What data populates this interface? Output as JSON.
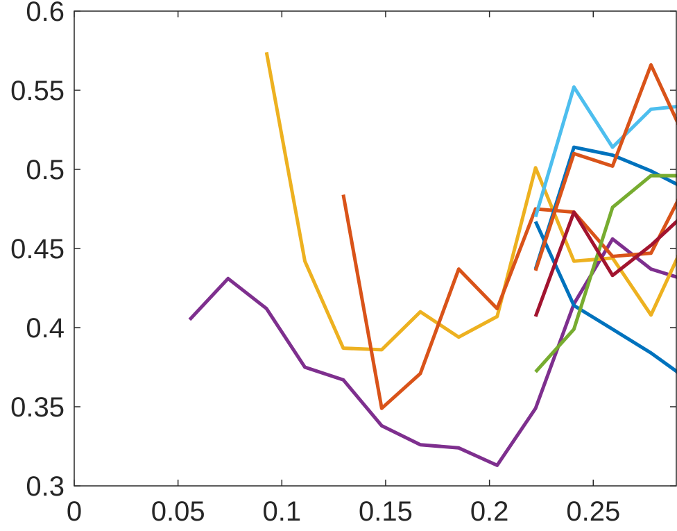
{
  "chart_data": {
    "type": "line",
    "title": "",
    "xlabel": "",
    "ylabel": "",
    "xlim": [
      0,
      0.29
    ],
    "ylim": [
      0.3,
      0.6
    ],
    "grid": false,
    "legend": "none",
    "x_ticks": [
      0,
      0.05,
      0.1,
      0.15,
      0.2,
      0.25
    ],
    "x_tick_labels": [
      "0",
      "0.05",
      "0.1",
      "0.15",
      "0.2",
      "0.25"
    ],
    "y_ticks": [
      0.3,
      0.35,
      0.4,
      0.45,
      0.5,
      0.55,
      0.6
    ],
    "y_tick_labels": [
      "0.3",
      "0.35",
      "0.4",
      "0.45",
      "0.5",
      "0.55",
      "0.6"
    ],
    "series": [
      {
        "color": "#7E2F8E",
        "x": [
          0.0556,
          0.0741,
          0.0926,
          0.1111,
          0.1296,
          0.1481,
          0.1667,
          0.1852,
          0.2037,
          0.2222,
          0.2407,
          0.2593,
          0.2778,
          0.2926
        ],
        "y": [
          0.405,
          0.431,
          0.412,
          0.375,
          0.367,
          0.338,
          0.326,
          0.324,
          0.313,
          0.349,
          0.415,
          0.456,
          0.437,
          0.431
        ]
      },
      {
        "color": "#EDB120",
        "x": [
          0.0926,
          0.1111,
          0.1296,
          0.1481,
          0.1667,
          0.1852,
          0.2037,
          0.2222,
          0.2407,
          0.2593,
          0.2778,
          0.2926
        ],
        "y": [
          0.574,
          0.442,
          0.387,
          0.386,
          0.41,
          0.394,
          0.407,
          0.501,
          0.442,
          0.444,
          0.408,
          0.45
        ]
      },
      {
        "color": "#D95319",
        "x": [
          0.1296,
          0.1481,
          0.1667,
          0.1852,
          0.2037,
          0.2222,
          0.2407,
          0.2593,
          0.2778,
          0.2926
        ],
        "y": [
          0.484,
          0.349,
          0.371,
          0.437,
          0.412,
          0.475,
          0.473,
          0.445,
          0.447,
          0.485
        ]
      },
      {
        "color": "#0072BD",
        "x": [
          0.2222,
          0.2407,
          0.2593,
          0.2778,
          0.2926
        ],
        "y": [
          0.467,
          0.414,
          0.399,
          0.384,
          0.37
        ]
      },
      {
        "color": "#4DBEEE",
        "x": [
          0.2222,
          0.2407,
          0.2593,
          0.2778,
          0.2926
        ],
        "y": [
          0.47,
          0.552,
          0.514,
          0.538,
          0.54
        ]
      },
      {
        "color": "#0072BD",
        "x": [
          0.2222,
          0.2407,
          0.2593,
          0.2778,
          0.2926
        ],
        "y": [
          0.437,
          0.514,
          0.509,
          0.499,
          0.489
        ]
      },
      {
        "color": "#D95319",
        "x": [
          0.2222,
          0.2407,
          0.2593,
          0.2778,
          0.2926
        ],
        "y": [
          0.436,
          0.51,
          0.502,
          0.566,
          0.524
        ]
      },
      {
        "color": "#77AC30",
        "x": [
          0.2222,
          0.2407,
          0.2593,
          0.2778,
          0.2926
        ],
        "y": [
          0.372,
          0.399,
          0.476,
          0.496,
          0.496
        ]
      },
      {
        "color": "#A2142F",
        "x": [
          0.2222,
          0.2407,
          0.2593,
          0.2778,
          0.2926
        ],
        "y": [
          0.407,
          0.473,
          0.433,
          0.452,
          0.47
        ]
      }
    ]
  }
}
